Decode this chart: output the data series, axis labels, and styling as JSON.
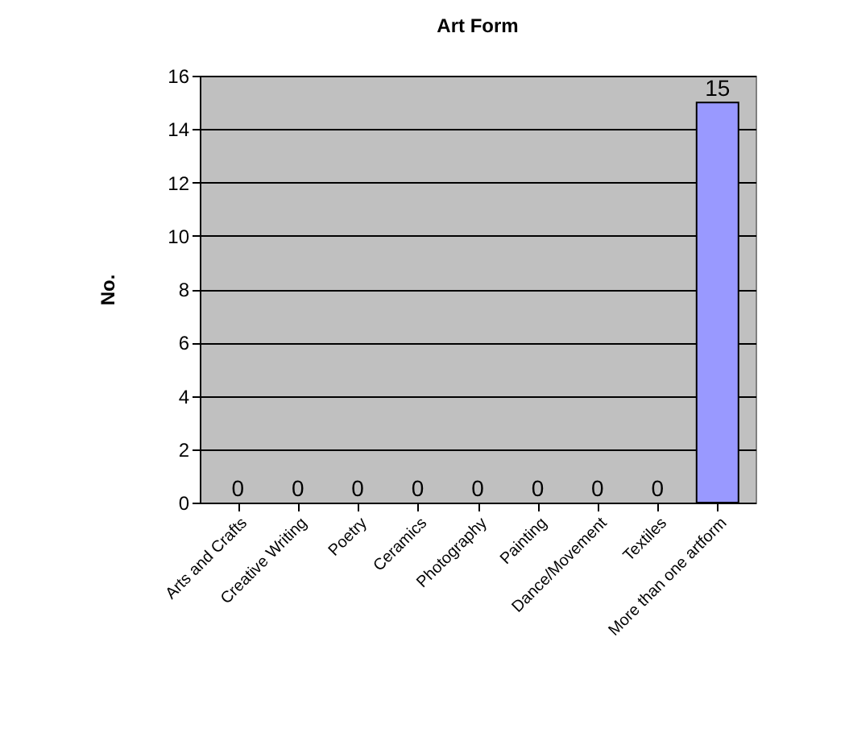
{
  "chart_data": {
    "type": "bar",
    "title": "Art Form",
    "ylabel": "No.",
    "categories": [
      "Arts and Crafts",
      "Creative Writing",
      "Poetry",
      "Ceramics",
      "Photography",
      "Painting",
      "Dance/Movement",
      "Textiles",
      "More than one artform"
    ],
    "values": [
      0,
      0,
      0,
      0,
      0,
      0,
      0,
      0,
      15
    ],
    "color": "#9999ff",
    "ylim": [
      0,
      16
    ],
    "yticks": [
      0,
      2,
      4,
      6,
      8,
      10,
      12,
      14,
      16
    ],
    "grid": "y",
    "data_labels": true
  }
}
